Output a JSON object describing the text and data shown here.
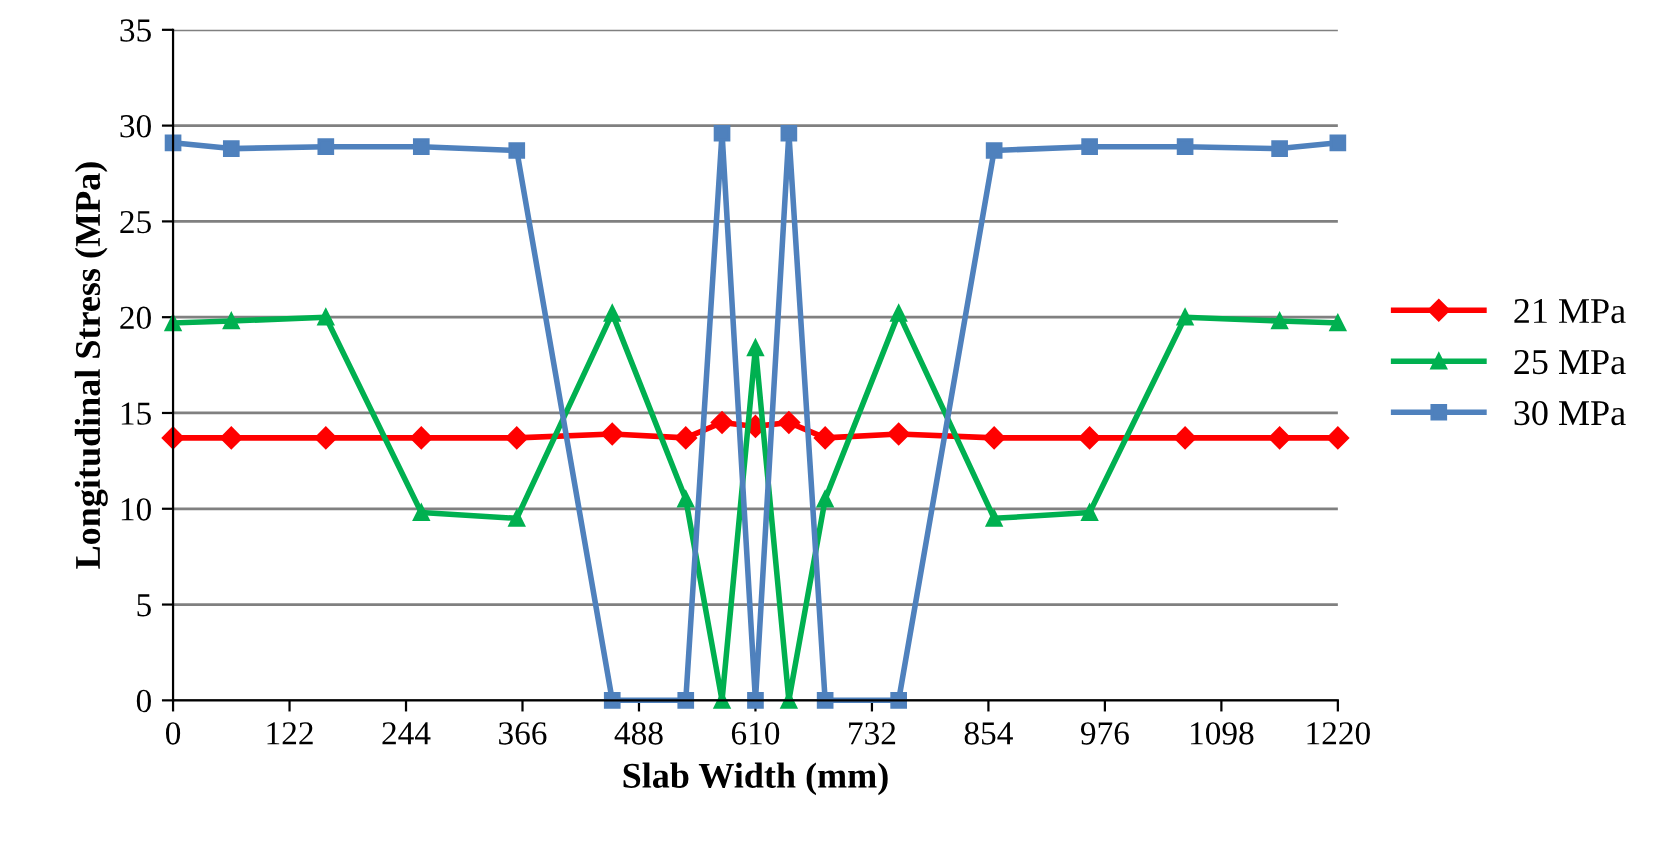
{
  "chart_data": {
    "type": "line",
    "xlabel": "Slab Width (mm)",
    "ylabel": "Longitudinal Stress (MPa)",
    "x": [
      0,
      61,
      160,
      260,
      360,
      460,
      537,
      575,
      610,
      645,
      683,
      760,
      860,
      960,
      1060,
      1159,
      1220
    ],
    "series": [
      {
        "name": "21 MPa",
        "color": "#ff0000",
        "marker": "diamond",
        "values": [
          13.7,
          13.7,
          13.7,
          13.7,
          13.7,
          13.9,
          13.7,
          14.5,
          14.3,
          14.5,
          13.7,
          13.9,
          13.7,
          13.7,
          13.7,
          13.7,
          13.7
        ]
      },
      {
        "name": "25 MPa",
        "color": "#00b050",
        "marker": "triangle",
        "values": [
          19.7,
          19.8,
          20,
          9.8,
          9.5,
          20.2,
          10.5,
          0,
          18.4,
          0,
          10.5,
          20.2,
          9.5,
          9.8,
          20,
          19.8,
          19.7
        ]
      },
      {
        "name": "30 MPa",
        "color": "#4f81bd",
        "marker": "square",
        "values": [
          29.1,
          28.8,
          28.9,
          28.9,
          28.7,
          0,
          0,
          29.6,
          0,
          29.6,
          0,
          0,
          28.7,
          28.9,
          28.9,
          28.8,
          29.1
        ]
      }
    ],
    "xlim": [
      0,
      1220
    ],
    "xticks": [
      0,
      122,
      244,
      366,
      488,
      610,
      732,
      854,
      976,
      1098,
      1220
    ],
    "ylim": [
      0,
      35
    ],
    "yticks": [
      0,
      5,
      10,
      15,
      20,
      25,
      30,
      35
    ],
    "grid": "y",
    "legend": "right",
    "line_style": "solid"
  }
}
